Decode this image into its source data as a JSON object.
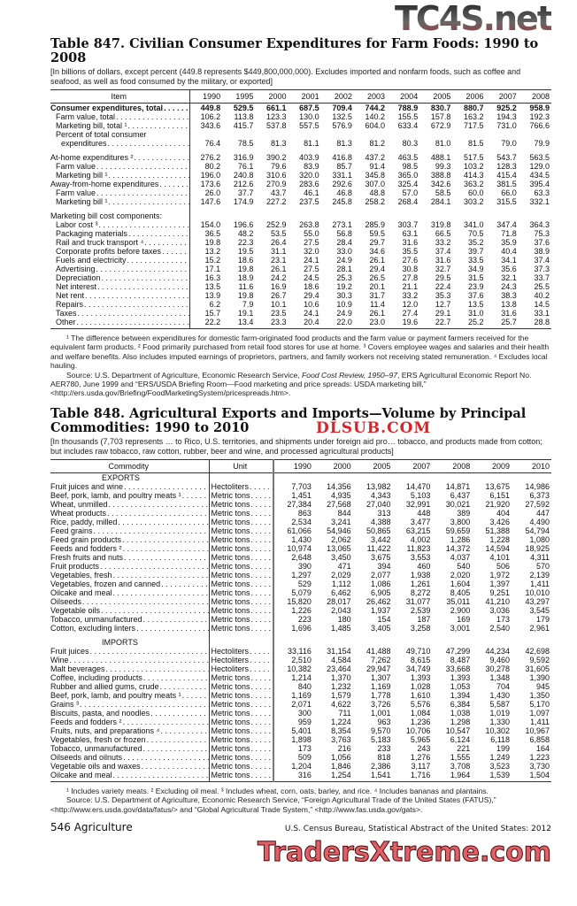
{
  "watermarks": {
    "top": "TC4S.net",
    "middle": "DLSUB.COM",
    "bottom": "TradersXtreme.com"
  },
  "t847": {
    "title": "Table 847. Civilian Consumer Expenditures for Farm Foods: 1990 to 2008",
    "headnote": "[In billions of dollars, except percent (449.8 represents $449,800,000,000). Excludes imported and nonfarm foods, such as coffee and seafood, as well as food consumed by the military, or exported]",
    "item_header": "Item",
    "years": [
      "1990",
      "1995",
      "2000",
      "2001",
      "2002",
      "2003",
      "2004",
      "2005",
      "2006",
      "2007",
      "2008"
    ],
    "rows": [
      {
        "label": "Consumer expenditures, total",
        "level": 0,
        "bold": true,
        "values": [
          "449.8",
          "529.5",
          "661.1",
          "687.5",
          "709.4",
          "744.2",
          "788.9",
          "830.7",
          "880.7",
          "925.2",
          "958.9"
        ]
      },
      {
        "label": "Farm value, total",
        "level": 1,
        "values": [
          "106.2",
          "113.8",
          "123.3",
          "130.0",
          "132.5",
          "140.2",
          "155.5",
          "157.8",
          "163.2",
          "194.3",
          "192.3"
        ]
      },
      {
        "label": "Marketing bill, total ¹",
        "level": 1,
        "values": [
          "343.6",
          "415.7",
          "537.8",
          "557.5",
          "576.9",
          "604.0",
          "633.4",
          "672.9",
          "717.5",
          "731.0",
          "766.6"
        ]
      },
      {
        "label": "Percent of total consumer",
        "level": 1,
        "values": []
      },
      {
        "label": "expenditures",
        "level": 2,
        "values": [
          "76.4",
          "78.5",
          "81.3",
          "81.1",
          "81.3",
          "81.2",
          "80.3",
          "81.0",
          "81.5",
          "79.0",
          "79.9"
        ]
      },
      {
        "spacer": true
      },
      {
        "label": "At-home expenditures ²",
        "level": 0,
        "values": [
          "276.2",
          "316.9",
          "390.2",
          "403.9",
          "416.8",
          "437.2",
          "463.5",
          "488.1",
          "517.5",
          "543.7",
          "563.5"
        ]
      },
      {
        "label": "Farm value",
        "level": 1,
        "values": [
          "80.2",
          "76.1",
          "79.6",
          "83.9",
          "85.7",
          "91.4",
          "98.5",
          "99.3",
          "103.2",
          "128.3",
          "129.0"
        ]
      },
      {
        "label": "Marketing bill ¹",
        "level": 1,
        "values": [
          "196.0",
          "240.8",
          "310.6",
          "320.0",
          "331.1",
          "345.8",
          "365.0",
          "388.8",
          "414.3",
          "415.4",
          "434.5"
        ]
      },
      {
        "label": "Away-from-home expenditures",
        "level": 0,
        "values": [
          "173.6",
          "212.6",
          "270.9",
          "283.6",
          "292.6",
          "307.0",
          "325.4",
          "342.6",
          "363.2",
          "381.5",
          "395.4"
        ]
      },
      {
        "label": "Farm value",
        "level": 1,
        "values": [
          "26.0",
          "37.7",
          "43.7",
          "46.1",
          "46.8",
          "48.8",
          "57.0",
          "58.5",
          "60.0",
          "66.0",
          "63.3"
        ]
      },
      {
        "label": "Marketing bill ¹",
        "level": 1,
        "values": [
          "147.6",
          "174.9",
          "227.2",
          "237.5",
          "245.8",
          "258.2",
          "268.4",
          "284.1",
          "303.2",
          "315.5",
          "332.1"
        ]
      },
      {
        "spacer": true
      },
      {
        "label": "Marketing bill cost components:",
        "level": 0,
        "values": []
      },
      {
        "label": "Labor cost ³",
        "level": 1,
        "values": [
          "154.0",
          "196.6",
          "252.9",
          "263.8",
          "273.1",
          "285.9",
          "303.7",
          "319.8",
          "341.0",
          "347.4",
          "364.3"
        ]
      },
      {
        "label": "Packaging materials",
        "level": 1,
        "values": [
          "36.5",
          "48.2",
          "53.5",
          "55.0",
          "56.8",
          "59.5",
          "63.1",
          "66.5",
          "70.5",
          "71.8",
          "75.3"
        ]
      },
      {
        "label": "Rail and truck transport ⁴",
        "level": 1,
        "values": [
          "19.8",
          "22.3",
          "26.4",
          "27.5",
          "28.4",
          "29.7",
          "31.6",
          "33.2",
          "35.2",
          "35.9",
          "37.6"
        ]
      },
      {
        "label": "Corporate profits before taxes",
        "level": 1,
        "values": [
          "13.2",
          "19.5",
          "31.1",
          "32.0",
          "33.0",
          "34.6",
          "35.5",
          "37.4",
          "39.7",
          "40.4",
          "38.9"
        ]
      },
      {
        "label": "Fuels and electricity",
        "level": 1,
        "values": [
          "15.2",
          "18.6",
          "23.1",
          "24.1",
          "24.9",
          "26.1",
          "27.6",
          "31.6",
          "33.5",
          "34.1",
          "37.4"
        ]
      },
      {
        "label": "Advertising",
        "level": 1,
        "values": [
          "17.1",
          "19.8",
          "26.1",
          "27.5",
          "28.1",
          "29.4",
          "30.8",
          "32.7",
          "34.9",
          "35.6",
          "37.3"
        ]
      },
      {
        "label": "Depreciation",
        "level": 1,
        "values": [
          "16.3",
          "18.9",
          "24.2",
          "24.5",
          "25.3",
          "26.5",
          "27.8",
          "29.5",
          "31.5",
          "32.1",
          "33.7"
        ]
      },
      {
        "label": "Net interest",
        "level": 1,
        "values": [
          "13.5",
          "11.6",
          "16.9",
          "18.6",
          "19.2",
          "20.1",
          "21.1",
          "22.4",
          "23.9",
          "24.3",
          "25.5"
        ]
      },
      {
        "label": "Net rent",
        "level": 1,
        "values": [
          "13.9",
          "19.8",
          "26.7",
          "29.4",
          "30.3",
          "31.7",
          "33.2",
          "35.3",
          "37.6",
          "38.3",
          "40.2"
        ]
      },
      {
        "label": "Repairs",
        "level": 1,
        "values": [
          "6.2",
          "7.9",
          "10.1",
          "10.6",
          "10.9",
          "11.4",
          "12.0",
          "12.7",
          "13.5",
          "13.8",
          "14.5"
        ]
      },
      {
        "label": "Taxes",
        "level": 1,
        "values": [
          "15.7",
          "19.1",
          "23.5",
          "24.1",
          "24.9",
          "26.1",
          "27.4",
          "29.1",
          "31.0",
          "31.6",
          "33.1"
        ]
      },
      {
        "label": "Other",
        "level": 1,
        "values": [
          "22.2",
          "13.4",
          "23.3",
          "20.4",
          "22.0",
          "23.0",
          "19.6",
          "22.7",
          "25.2",
          "25.7",
          "28.8"
        ]
      }
    ],
    "footnotes": "¹ The difference between expenditures for domestic farm-originated food products and the farm value or payment farmers received for the equivalent farm products. ² Food primarily purchased from retail food stores for use at home. ³ Covers employee wages and salaries and their health and welfare benefits. Also includes imputed earnings of proprietors, partners, and family workers not receiving stated remuneration. ⁴ Excludes local hauling.",
    "source_a": "Source: U.S. Department of Agriculture, Economic Research Service, ",
    "source_italic": "Food Cost Review, 1950–97",
    "source_b": ", ERS Agricultural Economic Report No. AER780, June 1999 and “ERS/USDA Briefing Room—Food marketing and price spreads: USDA marketing bill,” <http://ers.usda.gov/Briefing/FoodMarketingSystem/pricespreads.htm>."
  },
  "t848": {
    "title_line1": "Table 848. Agricultural Exports and Imports—Volume by Principal",
    "title_line2": "Commodities: 1990 to 2010",
    "headnote": "[In thousands (7,703 represents … to Rico, U.S. territories, and shipments under foreign aid pro… tobacco, and products made from cotton; but includes raw tobacco, raw cotton, rubber, beer and wine, and processed agricultural products]",
    "commodity_header": "Commodity",
    "unit_header": "Unit",
    "years": [
      "1990",
      "2000",
      "2005",
      "2007",
      "2008",
      "2009",
      "2010"
    ],
    "rows": [
      {
        "section": "EXPORTS"
      },
      {
        "label": "Fruit juices and wine",
        "unit": "Hectoliters",
        "values": [
          "7,703",
          "14,356",
          "13,982",
          "14,470",
          "14,871",
          "13,675",
          "14,986"
        ]
      },
      {
        "label": "Beef, pork, lamb, and poultry meats ¹",
        "unit": "Metric tons",
        "values": [
          "1,451",
          "4,935",
          "4,343",
          "5,103",
          "6,437",
          "6,151",
          "6,373"
        ]
      },
      {
        "label": "Wheat, unmilled",
        "unit": "Metric tons",
        "values": [
          "27,384",
          "27,568",
          "27,040",
          "32,991",
          "30,021",
          "21,920",
          "27,592"
        ]
      },
      {
        "label": "Wheat products",
        "unit": "Metric tons",
        "values": [
          "863",
          "844",
          "313",
          "448",
          "389",
          "404",
          "447"
        ]
      },
      {
        "label": "Rice, paddy, milled",
        "unit": "Metric tons",
        "values": [
          "2,534",
          "3,241",
          "4,388",
          "3,477",
          "3,800",
          "3,426",
          "4,490"
        ]
      },
      {
        "label": "Feed grains",
        "unit": "Metric tons",
        "values": [
          "61,066",
          "54,946",
          "50,865",
          "63,215",
          "59,659",
          "51,388",
          "54,794"
        ]
      },
      {
        "label": "Feed grain products",
        "unit": "Metric tons",
        "values": [
          "1,430",
          "2,062",
          "3,442",
          "4,002",
          "1,286",
          "1,228",
          "1,080"
        ]
      },
      {
        "label": "Feeds and fodders ²",
        "unit": "Metric tons",
        "values": [
          "10,974",
          "13,065",
          "11,422",
          "11,823",
          "14,372",
          "14,594",
          "18,925"
        ]
      },
      {
        "label": "Fresh fruits and nuts",
        "unit": "Metric tons",
        "values": [
          "2,648",
          "3,450",
          "3,675",
          "3,553",
          "4,037",
          "4,101",
          "4,311"
        ]
      },
      {
        "label": "Fruit products",
        "unit": "Metric tons",
        "values": [
          "390",
          "471",
          "394",
          "460",
          "540",
          "506",
          "570"
        ]
      },
      {
        "label": "Vegetables, fresh",
        "unit": "Metric tons",
        "values": [
          "1,297",
          "2,029",
          "2,077",
          "1,938",
          "2,020",
          "1,972",
          "2,139"
        ]
      },
      {
        "label": "Vegetables, frozen and canned",
        "unit": "Metric tons",
        "values": [
          "529",
          "1,112",
          "1,086",
          "1,261",
          "1,604",
          "1,397",
          "1,411"
        ]
      },
      {
        "label": "Oilcake and meal",
        "unit": "Metric tons",
        "values": [
          "5,079",
          "6,462",
          "6,905",
          "8,272",
          "8,405",
          "9,251",
          "10,010"
        ]
      },
      {
        "label": "Oilseeds",
        "unit": "Metric tons",
        "values": [
          "15,820",
          "28,017",
          "26,462",
          "31,077",
          "35,011",
          "41,210",
          "43,297"
        ]
      },
      {
        "label": "Vegetable oils",
        "unit": "Metric tons",
        "values": [
          "1,226",
          "2,043",
          "1,937",
          "2,539",
          "2,900",
          "3,036",
          "3,545"
        ]
      },
      {
        "label": "Tobacco, unmanufactured",
        "unit": "Metric tons",
        "values": [
          "223",
          "180",
          "154",
          "187",
          "169",
          "173",
          "179"
        ]
      },
      {
        "label": "Cotton, excluding linters",
        "unit": "Metric tons",
        "values": [
          "1,696",
          "1,485",
          "3,405",
          "3,258",
          "3,001",
          "2,540",
          "2,961"
        ]
      },
      {
        "spacer": true
      },
      {
        "section": "IMPORTS"
      },
      {
        "label": "Fruit juices",
        "unit": "Hectoliters",
        "values": [
          "33,116",
          "31,154",
          "41,488",
          "49,710",
          "47,299",
          "44,234",
          "42,698"
        ]
      },
      {
        "label": "Wine",
        "unit": "Hectoliters",
        "values": [
          "2,510",
          "4,584",
          "7,262",
          "8,615",
          "8,487",
          "9,460",
          "9,592"
        ]
      },
      {
        "label": "Malt beverages",
        "unit": "Hectoliters",
        "values": [
          "10,382",
          "23,464",
          "29,947",
          "34,749",
          "33,668",
          "30,278",
          "31,605"
        ]
      },
      {
        "label": "Coffee, including products",
        "unit": "Metric tons",
        "values": [
          "1,214",
          "1,370",
          "1,307",
          "1,393",
          "1,393",
          "1,348",
          "1,390"
        ]
      },
      {
        "label": "Rubber and allied gums, crude",
        "unit": "Metric tons",
        "values": [
          "840",
          "1,232",
          "1,169",
          "1,028",
          "1,053",
          "704",
          "945"
        ]
      },
      {
        "label": "Beef, pork, lamb, and poultry meats ¹",
        "unit": "Metric tons",
        "values": [
          "1,169",
          "1,579",
          "1,778",
          "1,610",
          "1,394",
          "1,430",
          "1,350"
        ]
      },
      {
        "label": "Grains ³",
        "unit": "Metric tons",
        "values": [
          "2,071",
          "4,622",
          "3,726",
          "5,576",
          "6,384",
          "5,587",
          "5,170"
        ]
      },
      {
        "label": "Biscuits, pasta, and noodles",
        "unit": "Metric tons",
        "values": [
          "300",
          "711",
          "1,001",
          "1,084",
          "1,038",
          "1,019",
          "1,097"
        ]
      },
      {
        "label": "Feeds and fodders ²",
        "unit": "Metric tons",
        "values": [
          "959",
          "1,224",
          "963",
          "1,236",
          "1,298",
          "1,330",
          "1,411"
        ]
      },
      {
        "label": "Fruits, nuts, and preparations ⁴",
        "unit": "Metric tons",
        "values": [
          "5,401",
          "8,354",
          "9,570",
          "10,706",
          "10,547",
          "10,302",
          "10,967"
        ]
      },
      {
        "label": "Vegetables, fresh or frozen",
        "unit": "Metric tons",
        "values": [
          "1,898",
          "3,763",
          "5,183",
          "5,965",
          "6,124",
          "6,118",
          "6,858"
        ]
      },
      {
        "label": "Tobacco, unmanufactured",
        "unit": "Metric tons",
        "values": [
          "173",
          "216",
          "233",
          "243",
          "221",
          "199",
          "164"
        ]
      },
      {
        "label": "Oilseeds and oilnuts",
        "unit": "Metric tons",
        "values": [
          "509",
          "1,056",
          "818",
          "1,276",
          "1,555",
          "1,249",
          "1,223"
        ]
      },
      {
        "label": "Vegetable oils and waxes",
        "unit": "Metric tons",
        "values": [
          "1,204",
          "1,846",
          "2,386",
          "3,117",
          "3,708",
          "3,523",
          "3,730"
        ]
      },
      {
        "label": "Oilcake and meal",
        "unit": "Metric tons",
        "values": [
          "316",
          "1,254",
          "1,541",
          "1,716",
          "1,964",
          "1,539",
          "1,504"
        ]
      }
    ],
    "footnotes": "¹ Includes variety meats. ² Excluding oil meal. ³ Includes wheat, corn, oats, barley, and rice. ⁴ Includes bananas and plantains.",
    "source": "Source: U.S. Department of Agriculture, Economic Research Service, “Foreign Agricultural Trade of the United States (FATUS),” <http://www.ers.usda.gov/data/fatus/> and “Global Agricultural Trade System,” <http://www.fas.usda.gov/gats>."
  },
  "page_footer": {
    "page": "546  Agriculture",
    "running": "U.S. Census Bureau, Statistical Abstract of the United States: 2012"
  }
}
